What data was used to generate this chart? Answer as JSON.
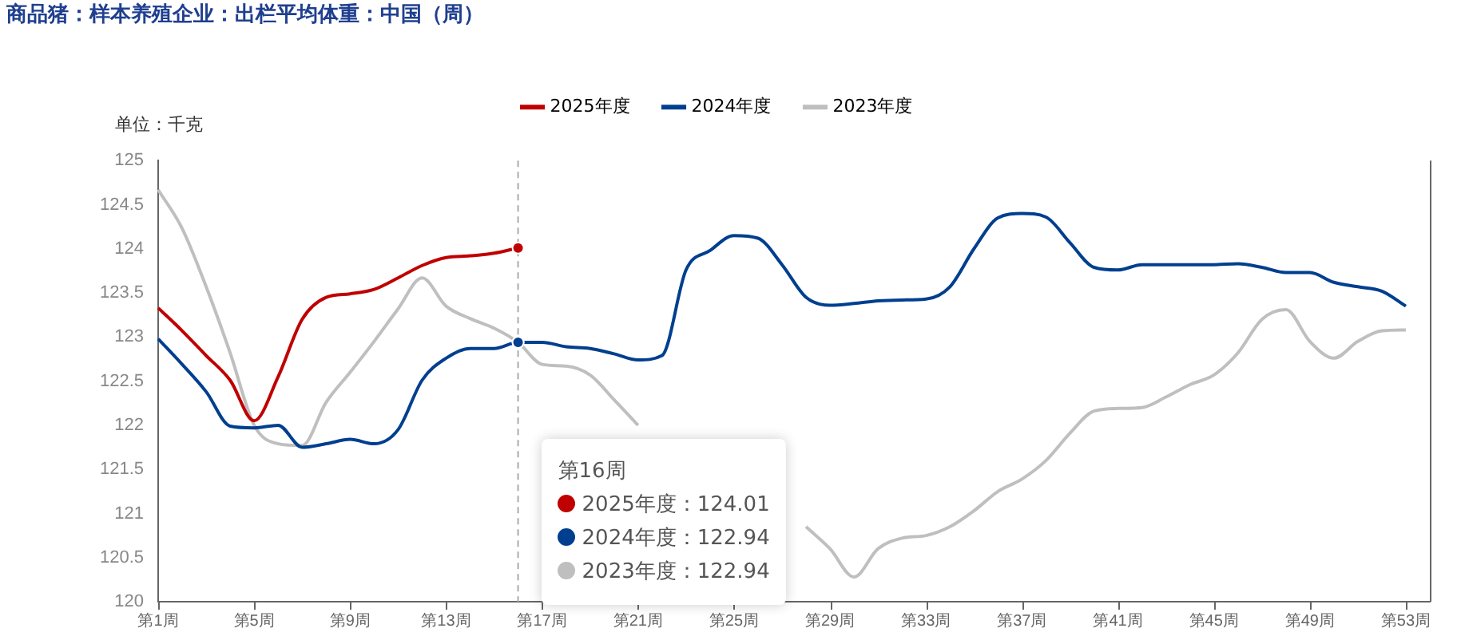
{
  "chart_data": {
    "type": "line",
    "title": "商品猪：样本养殖企业：出栏平均体重：中国（周）",
    "ylabel": "单位：千克",
    "categories": [
      "第1周",
      null,
      null,
      null,
      "第5周",
      null,
      null,
      null,
      "第9周",
      null,
      null,
      null,
      "第13周",
      null,
      null,
      null,
      "第17周",
      null,
      null,
      null,
      "第21周",
      null,
      null,
      null,
      "第25周",
      null,
      null,
      null,
      "第29周",
      null,
      null,
      null,
      "第33周",
      null,
      null,
      null,
      "第37周",
      null,
      null,
      null,
      "第41周",
      null,
      null,
      null,
      "第45周",
      null,
      null,
      null,
      "第49周",
      null,
      null,
      null,
      "第53周",
      null
    ],
    "ylim": [
      120,
      125
    ],
    "yticks": [
      120,
      120.5,
      121,
      121.5,
      122,
      122.5,
      123,
      123.5,
      124,
      124.5,
      125
    ],
    "series": [
      {
        "name": "2025年度",
        "color": "#c00000",
        "values": [
          123.33,
          123.07,
          122.79,
          122.51,
          122.05,
          122.55,
          123.2,
          123.45,
          123.49,
          123.54,
          123.67,
          123.81,
          123.9,
          123.92,
          123.95,
          124.01,
          null,
          null,
          null,
          null,
          null,
          null,
          null,
          null,
          null,
          null,
          null,
          null,
          null,
          null,
          null,
          null,
          null,
          null,
          null,
          null,
          null,
          null,
          null,
          null,
          null,
          null,
          null,
          null,
          null,
          null,
          null,
          null,
          null,
          null,
          null,
          null,
          null,
          null
        ]
      },
      {
        "name": "2024年度",
        "color": "#003f8f",
        "values": [
          122.98,
          122.69,
          122.38,
          121.99,
          121.97,
          122.0,
          121.75,
          121.79,
          121.84,
          121.79,
          121.95,
          122.51,
          122.76,
          122.87,
          122.87,
          122.94,
          122.94,
          122.89,
          122.87,
          122.81,
          122.74,
          122.79,
          123.76,
          123.98,
          124.15,
          124.12,
          123.82,
          123.45,
          123.36,
          123.38,
          123.41,
          123.42,
          123.43,
          123.57,
          124.0,
          124.35,
          124.4,
          124.36,
          124.07,
          123.79,
          123.76,
          123.82,
          123.82,
          123.82,
          123.82,
          123.83,
          123.79,
          123.73,
          123.73,
          123.62,
          123.57,
          123.52,
          123.35,
          null
        ]
      },
      {
        "name": "2023年度",
        "color": "#bfbfbf",
        "values": [
          124.67,
          124.23,
          123.57,
          122.82,
          122.0,
          121.79,
          121.77,
          122.26,
          122.6,
          122.95,
          123.32,
          123.67,
          123.35,
          123.21,
          123.1,
          122.94,
          122.69,
          122.67,
          122.57,
          122.29,
          122.0,
          null,
          null,
          null,
          null,
          null,
          null,
          120.85,
          120.6,
          120.28,
          120.6,
          120.72,
          120.75,
          120.85,
          121.03,
          121.25,
          121.39,
          121.6,
          121.91,
          122.16,
          122.19,
          122.2,
          122.32,
          122.46,
          122.57,
          122.82,
          123.2,
          123.31,
          122.95,
          122.76,
          122.95,
          123.07,
          123.08,
          null
        ]
      }
    ],
    "legend": "top",
    "ref_lines": [
      {
        "axis": "x",
        "value": "第16周",
        "color": "#aaaaaa",
        "line_style": "dashed"
      }
    ],
    "annotations": [
      "2025年度：124.01",
      "2024年度：122.94",
      "2023年度：122.94"
    ]
  }
}
